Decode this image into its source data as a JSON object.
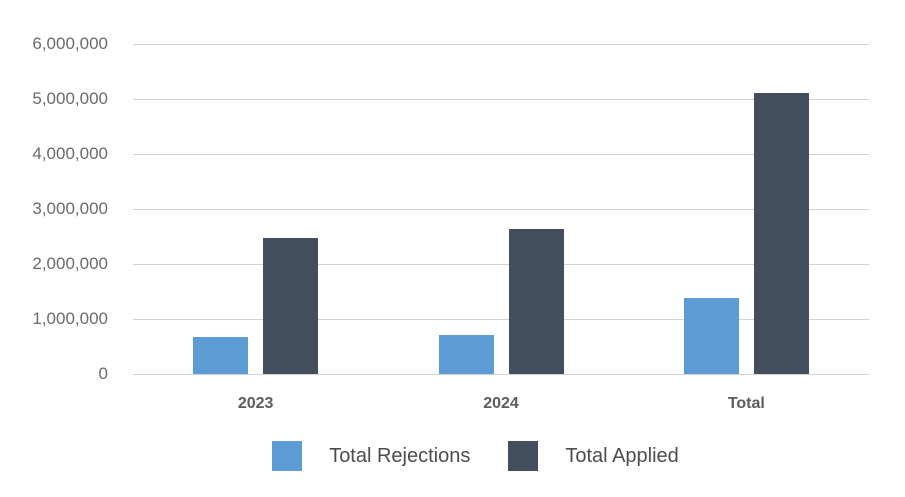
{
  "chart_data": {
    "type": "bar",
    "title": "",
    "xlabel": "",
    "ylabel": "",
    "categories": [
      "2023",
      "2024",
      "Total"
    ],
    "series": [
      {
        "name": "Total Rejections",
        "color": "#5c9bd3",
        "values": [
          670000,
          710000,
          1380000
        ]
      },
      {
        "name": "Total Applied",
        "color": "#444f5e",
        "values": [
          2470000,
          2640000,
          5110000
        ]
      }
    ],
    "ylim": [
      0,
      6000000
    ],
    "yticks": [
      {
        "value": 0,
        "label": "0"
      },
      {
        "value": 1000000,
        "label": "1,000,000"
      },
      {
        "value": 2000000,
        "label": "2,000,000"
      },
      {
        "value": 3000000,
        "label": "3,000,000"
      },
      {
        "value": 4000000,
        "label": "4,000,000"
      },
      {
        "value": 5000000,
        "label": "5,000,000"
      },
      {
        "value": 6000000,
        "label": "6,000,000"
      }
    ],
    "grid": true,
    "legend_position": "bottom"
  },
  "colors": {
    "background": "#ffffff",
    "gridline": "#d2d2d2",
    "y_tick_text": "#6b6b6b",
    "x_tick_text": "#5c5c5c",
    "legend_text": "#4c4c4c"
  }
}
